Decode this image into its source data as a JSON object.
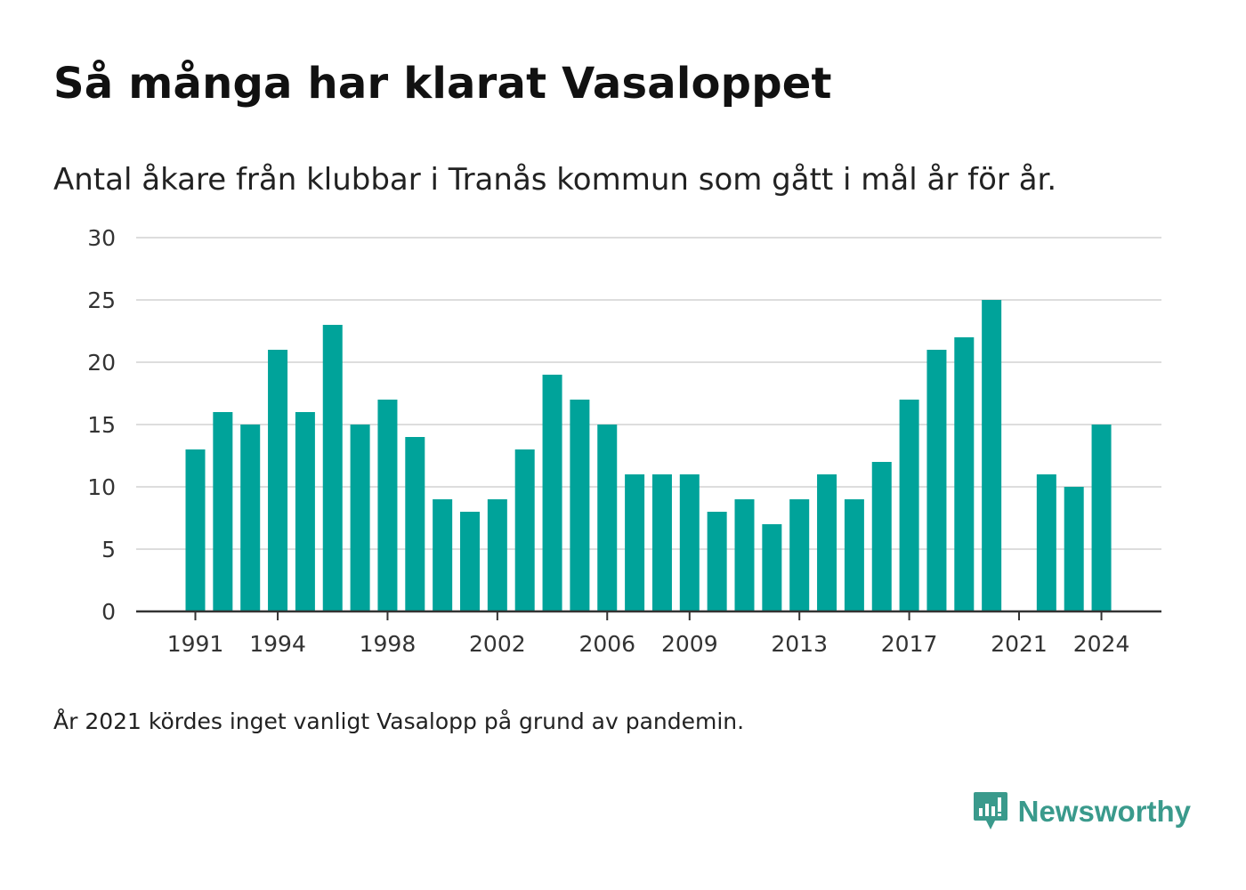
{
  "title": "Så många har klarat Vasaloppet",
  "subtitle": "Antal åkare från klubbar i Tranås kommun som gått i mål år för år.",
  "note": "År 2021 kördes inget vanligt Vasalopp på grund av pandemin.",
  "brand": {
    "name": "Newsworthy",
    "icon": "newsworthy-logo-icon"
  },
  "colors": {
    "bar": "#00a39a",
    "grid": "#dddddd",
    "axis": "#333333",
    "brand": "#3a9a8c"
  },
  "chart_data": {
    "type": "bar",
    "categories": [
      1991,
      1992,
      1993,
      1994,
      1995,
      1996,
      1997,
      1998,
      1999,
      2000,
      2001,
      2002,
      2003,
      2004,
      2005,
      2006,
      2007,
      2008,
      2009,
      2010,
      2011,
      2012,
      2013,
      2014,
      2015,
      2016,
      2017,
      2018,
      2019,
      2020,
      2021,
      2022,
      2023,
      2024
    ],
    "values": [
      13,
      16,
      15,
      21,
      16,
      23,
      15,
      17,
      14,
      9,
      8,
      9,
      13,
      19,
      17,
      15,
      11,
      11,
      11,
      8,
      9,
      7,
      9,
      11,
      9,
      12,
      17,
      21,
      22,
      25,
      null,
      11,
      10,
      15
    ],
    "x_tick_labels": [
      "1991",
      "1994",
      "1998",
      "2002",
      "2006",
      "2009",
      "2013",
      "2017",
      "2021",
      "2024"
    ],
    "y_ticks": [
      0,
      5,
      10,
      15,
      20,
      25,
      30
    ],
    "ylim": [
      0,
      30
    ],
    "grid": true,
    "xlabel": "",
    "ylabel": ""
  }
}
